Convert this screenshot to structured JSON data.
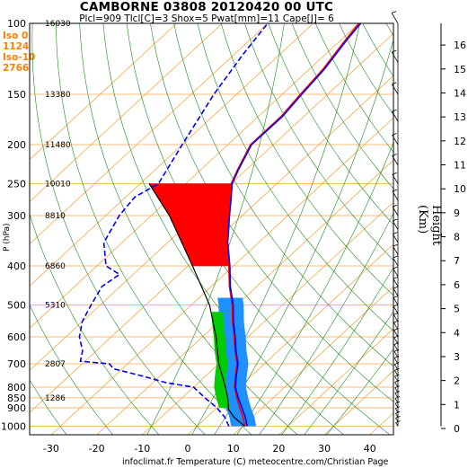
{
  "header": {
    "title": "CAMBORNE 03808 20120420 00 UTC",
    "subtitle": "Plcl=909 Tlcl[C]=3 Shox=5 Pwat[mm]=11 Cape[J]= 6"
  },
  "iso_labels": [
    "Iso 0",
    "1124",
    "Iso-10",
    "2766"
  ],
  "y_axis_label": "P (hPa)",
  "height_axis_label": "Height (Km)",
  "footer": "infoclimat.fr Temperature (C) meteocentre.com/Christian Page",
  "chart_data": {
    "type": "line",
    "diagram": "skew-T log-P",
    "title": "CAMBORNE 03808 20120420 00 UTC",
    "xlabel": "Temperature (C)",
    "ylabel": "P (hPa)",
    "xlim": [
      -35,
      47
    ],
    "ylim": [
      1050,
      100
    ],
    "x_ticks": [
      -30,
      -20,
      -10,
      0,
      10,
      20,
      30,
      40
    ],
    "pressure_ticks": [
      100,
      150,
      200,
      250,
      300,
      400,
      500,
      600,
      700,
      800,
      850,
      900,
      1000
    ],
    "height_ticks_km": [
      0,
      1,
      2,
      3,
      4,
      5,
      6,
      7,
      8,
      9,
      10,
      11,
      12,
      13,
      14,
      15,
      16
    ],
    "geopotential_labels": [
      {
        "p": 100,
        "label": "16030"
      },
      {
        "p": 150,
        "label": "13380"
      },
      {
        "p": 200,
        "label": "11480"
      },
      {
        "p": 250,
        "label": "10010"
      },
      {
        "p": 300,
        "label": "8810"
      },
      {
        "p": 400,
        "label": "6860"
      },
      {
        "p": 500,
        "label": "5310"
      },
      {
        "p": 700,
        "label": "2807"
      },
      {
        "p": 850,
        "label": "1286"
      }
    ],
    "series": [
      {
        "name": "Temperature",
        "color": "#ff0000",
        "points": [
          [
            1000,
            10.5
          ],
          [
            950,
            8
          ],
          [
            900,
            5
          ],
          [
            850,
            2
          ],
          [
            800,
            -1
          ],
          [
            750,
            -3.5
          ],
          [
            700,
            -6
          ],
          [
            650,
            -9.5
          ],
          [
            600,
            -13
          ],
          [
            550,
            -17
          ],
          [
            500,
            -21
          ],
          [
            450,
            -26
          ],
          [
            400,
            -31
          ],
          [
            350,
            -37
          ],
          [
            300,
            -43
          ],
          [
            270,
            -47
          ],
          [
            250,
            -50
          ],
          [
            230,
            -52
          ],
          [
            200,
            -55
          ],
          [
            170,
            -55
          ],
          [
            150,
            -56
          ],
          [
            130,
            -57
          ],
          [
            110,
            -59
          ],
          [
            100,
            -60
          ]
        ]
      },
      {
        "name": "Virtual temperature",
        "color": "#0000ff",
        "points": [
          [
            1000,
            11
          ],
          [
            950,
            8.5
          ],
          [
            900,
            5.5
          ],
          [
            850,
            2.3
          ],
          [
            800,
            -0.8
          ],
          [
            750,
            -3.3
          ],
          [
            700,
            -5.8
          ],
          [
            650,
            -9.3
          ],
          [
            600,
            -12.8
          ],
          [
            550,
            -16.8
          ],
          [
            500,
            -20.8
          ],
          [
            450,
            -25.8
          ],
          [
            400,
            -30.8
          ],
          [
            350,
            -36.8
          ],
          [
            300,
            -42.8
          ],
          [
            270,
            -46.8
          ],
          [
            250,
            -49.8
          ],
          [
            230,
            -51.8
          ],
          [
            200,
            -54.8
          ],
          [
            170,
            -54.7
          ],
          [
            150,
            -55.7
          ],
          [
            130,
            -56.7
          ],
          [
            110,
            -58.7
          ],
          [
            100,
            -59.6
          ]
        ]
      },
      {
        "name": "Dew point",
        "color": "#0000ff",
        "style": "dashed",
        "points": [
          [
            1000,
            7
          ],
          [
            950,
            4
          ],
          [
            900,
            0
          ],
          [
            850,
            -5
          ],
          [
            800,
            -10
          ],
          [
            780,
            -17
          ],
          [
            750,
            -24
          ],
          [
            720,
            -32
          ],
          [
            700,
            -34
          ],
          [
            690,
            -41
          ],
          [
            650,
            -43
          ],
          [
            600,
            -47
          ],
          [
            550,
            -50
          ],
          [
            500,
            -52
          ],
          [
            450,
            -54
          ],
          [
            420,
            -53
          ],
          [
            400,
            -58
          ],
          [
            350,
            -64
          ],
          [
            300,
            -67
          ],
          [
            270,
            -68
          ],
          [
            250,
            -66
          ],
          [
            200,
            -70
          ],
          [
            150,
            -75
          ],
          [
            120,
            -78
          ],
          [
            100,
            -80
          ]
        ]
      },
      {
        "name": "Parcel",
        "color": "#000000",
        "points": [
          [
            1000,
            10.5
          ],
          [
            950,
            6
          ],
          [
            909,
            3
          ],
          [
            850,
            0
          ],
          [
            800,
            -3
          ],
          [
            700,
            -10
          ],
          [
            600,
            -17
          ],
          [
            500,
            -26
          ],
          [
            400,
            -39
          ],
          [
            300,
            -56
          ],
          [
            250,
            -68
          ]
        ]
      }
    ],
    "cape_area_color": "#ff0000",
    "cin_area_color": "#1e90ff",
    "moist_area_color": "#00cc00",
    "grid": true,
    "legend": "none"
  }
}
